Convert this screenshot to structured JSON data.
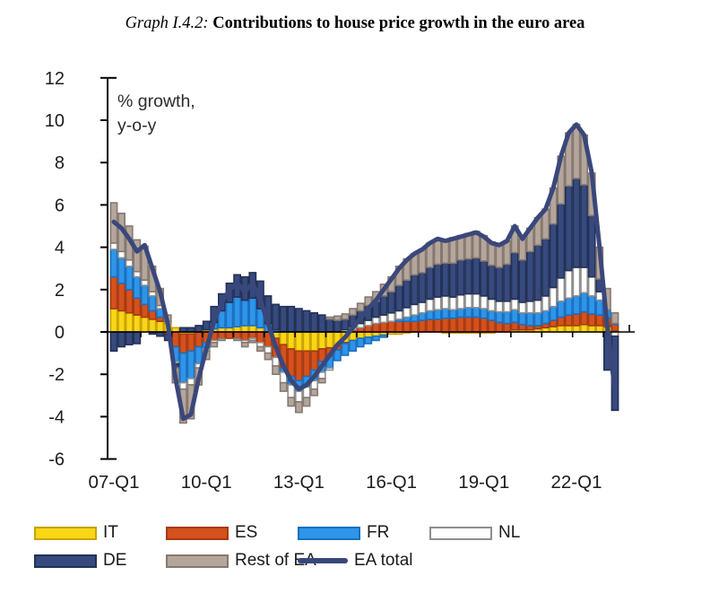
{
  "title": {
    "prefix": "Graph I.4.2:",
    "main": "Contributions to house price growth in the euro area"
  },
  "legend": {
    "items": [
      {
        "id": "IT",
        "label": "IT",
        "color": "#F9D616",
        "border": "#C9A300",
        "type": "box"
      },
      {
        "id": "ES",
        "label": "ES",
        "color": "#D5511D",
        "border": "#A63A11",
        "type": "box"
      },
      {
        "id": "FR",
        "label": "FR",
        "color": "#2E95E8",
        "border": "#1A6FC0",
        "type": "box"
      },
      {
        "id": "NL",
        "label": "NL",
        "color": "#FFFFFF",
        "border": "#8E8E8E",
        "type": "box"
      },
      {
        "id": "DE",
        "label": "DE",
        "color": "#364A7E",
        "border": "#243156",
        "type": "box"
      },
      {
        "id": "RestEA",
        "label": "Rest of EA",
        "color": "#B5A69B",
        "border": "#857870",
        "type": "box"
      },
      {
        "id": "EAtotal",
        "label": "EA total",
        "color": "#3A477B",
        "border": "#3A477B",
        "type": "line"
      }
    ]
  },
  "chart_data": {
    "type": "bar",
    "stacked": true,
    "title": "Contributions to house price growth in the euro area",
    "ylabel_annotation": [
      "% growth,",
      "y-o-y"
    ],
    "ylim": [
      -6,
      12
    ],
    "yticks": [
      12,
      10,
      8,
      6,
      4,
      2,
      0,
      -2,
      -4,
      -6
    ],
    "xtick_labels": [
      "07-Q1",
      "10-Q1",
      "13-Q1",
      "16-Q1",
      "19-Q1",
      "22-Q1"
    ],
    "grid": false,
    "legend_position": "bottom",
    "x": [
      "07-Q1",
      "07-Q2",
      "07-Q3",
      "07-Q4",
      "08-Q1",
      "08-Q2",
      "08-Q3",
      "08-Q4",
      "09-Q1",
      "09-Q2",
      "09-Q3",
      "09-Q4",
      "10-Q1",
      "10-Q2",
      "10-Q3",
      "10-Q4",
      "11-Q1",
      "11-Q2",
      "11-Q3",
      "11-Q4",
      "12-Q1",
      "12-Q2",
      "12-Q3",
      "12-Q4",
      "13-Q1",
      "13-Q2",
      "13-Q3",
      "13-Q4",
      "14-Q1",
      "14-Q2",
      "14-Q3",
      "14-Q4",
      "15-Q1",
      "15-Q2",
      "15-Q3",
      "15-Q4",
      "16-Q1",
      "16-Q2",
      "16-Q3",
      "16-Q4",
      "17-Q1",
      "17-Q2",
      "17-Q3",
      "17-Q4",
      "18-Q1",
      "18-Q2",
      "18-Q3",
      "18-Q4",
      "19-Q1",
      "19-Q2",
      "19-Q3",
      "19-Q4",
      "20-Q1",
      "20-Q2",
      "20-Q3",
      "20-Q4",
      "21-Q1",
      "21-Q2",
      "21-Q3",
      "21-Q4",
      "22-Q1",
      "22-Q2",
      "22-Q3",
      "22-Q4",
      "23-Q1",
      "23-Q2"
    ],
    "series": [
      {
        "name": "IT",
        "color": "#F9D616",
        "border": "#C9A300",
        "values": [
          1.1,
          1.0,
          0.9,
          0.8,
          0.7,
          0.6,
          0.5,
          0.4,
          0.2,
          -0.1,
          -0.1,
          0.0,
          0.1,
          0.15,
          0.2,
          0.2,
          0.25,
          0.3,
          0.3,
          0.2,
          0.0,
          -0.3,
          -0.6,
          -0.8,
          -0.9,
          -0.9,
          -0.9,
          -0.8,
          -0.75,
          -0.65,
          -0.5,
          -0.4,
          -0.3,
          -0.25,
          -0.2,
          -0.15,
          -0.1,
          -0.1,
          -0.05,
          0.0,
          0.0,
          0.0,
          0.0,
          -0.05,
          -0.05,
          -0.05,
          -0.05,
          -0.05,
          -0.05,
          -0.05,
          0.0,
          0.0,
          0.1,
          0.1,
          0.1,
          0.15,
          0.2,
          0.25,
          0.3,
          0.3,
          0.3,
          0.35,
          0.3,
          0.3,
          0.25,
          0.05
        ]
      },
      {
        "name": "ES",
        "color": "#D5511D",
        "border": "#A63A11",
        "values": [
          1.5,
          1.3,
          1.1,
          0.8,
          0.6,
          0.4,
          0.2,
          -0.1,
          -0.7,
          -0.9,
          -0.8,
          -0.7,
          -0.5,
          -0.4,
          -0.3,
          -0.3,
          -0.3,
          -0.4,
          -0.3,
          -0.5,
          -0.7,
          -0.9,
          -1.1,
          -1.3,
          -1.4,
          -1.2,
          -0.9,
          -0.6,
          -0.4,
          -0.2,
          -0.05,
          0.1,
          0.2,
          0.3,
          0.4,
          0.45,
          0.5,
          0.5,
          0.5,
          0.5,
          0.55,
          0.6,
          0.6,
          0.65,
          0.65,
          0.7,
          0.7,
          0.7,
          0.65,
          0.55,
          0.45,
          0.4,
          0.35,
          0.25,
          0.2,
          0.15,
          0.2,
          0.3,
          0.4,
          0.5,
          0.55,
          0.6,
          0.55,
          0.5,
          0.4,
          0.3
        ]
      },
      {
        "name": "FR",
        "color": "#2E95E8",
        "border": "#1A6FC0",
        "values": [
          1.3,
          1.2,
          1.1,
          1.0,
          0.9,
          0.7,
          0.4,
          0.0,
          -0.7,
          -1.4,
          -1.3,
          -0.8,
          -0.3,
          0.3,
          0.8,
          1.2,
          1.4,
          1.2,
          1.3,
          0.9,
          0.4,
          0.1,
          -0.2,
          -0.4,
          -0.5,
          -0.5,
          -0.5,
          -0.5,
          -0.55,
          -0.5,
          -0.55,
          -0.5,
          -0.4,
          -0.3,
          -0.2,
          -0.1,
          0.0,
          0.1,
          0.2,
          0.3,
          0.35,
          0.4,
          0.45,
          0.45,
          0.4,
          0.4,
          0.45,
          0.45,
          0.45,
          0.45,
          0.5,
          0.55,
          0.6,
          0.55,
          0.6,
          0.6,
          0.6,
          0.65,
          0.75,
          0.8,
          0.85,
          0.9,
          0.85,
          0.7,
          0.4,
          0.05
        ]
      },
      {
        "name": "NL",
        "color": "#FFFFFF",
        "border": "#8E8E8E",
        "values": [
          0.3,
          0.3,
          0.3,
          0.25,
          0.25,
          0.2,
          0.15,
          0.1,
          -0.1,
          -0.3,
          -0.3,
          -0.2,
          -0.1,
          -0.1,
          0.0,
          0.0,
          0.0,
          -0.1,
          -0.1,
          -0.2,
          -0.3,
          -0.4,
          -0.5,
          -0.6,
          -0.5,
          -0.5,
          -0.4,
          -0.3,
          -0.1,
          0.0,
          0.1,
          0.15,
          0.2,
          0.25,
          0.3,
          0.35,
          0.4,
          0.4,
          0.45,
          0.5,
          0.5,
          0.55,
          0.6,
          0.6,
          0.6,
          0.65,
          0.65,
          0.65,
          0.6,
          0.55,
          0.5,
          0.5,
          0.5,
          0.5,
          0.55,
          0.6,
          0.7,
          0.9,
          1.1,
          1.3,
          1.35,
          1.2,
          0.9,
          0.4,
          0.0,
          -0.2
        ]
      },
      {
        "name": "DE",
        "color": "#364A7E",
        "border": "#243156",
        "values": [
          -0.9,
          -0.7,
          -0.6,
          -0.55,
          0.0,
          -0.1,
          -0.2,
          -0.3,
          -0.2,
          0.2,
          0.2,
          0.3,
          0.4,
          0.75,
          0.8,
          0.9,
          1.05,
          1.1,
          1.2,
          1.3,
          1.3,
          1.2,
          1.2,
          1.2,
          1.1,
          1.0,
          0.9,
          0.8,
          0.6,
          0.55,
          0.5,
          0.55,
          0.6,
          0.7,
          0.75,
          0.9,
          1.0,
          1.2,
          1.3,
          1.4,
          1.4,
          1.5,
          1.55,
          1.55,
          1.6,
          1.65,
          1.65,
          1.7,
          1.65,
          1.6,
          1.6,
          1.75,
          2.2,
          2.0,
          2.35,
          2.6,
          2.7,
          3.0,
          3.5,
          4.0,
          4.2,
          3.9,
          2.9,
          0.6,
          -1.8,
          -3.5
        ]
      },
      {
        "name": "Rest of EA",
        "color": "#B5A69B",
        "border": "#857870",
        "values": [
          1.9,
          1.8,
          1.6,
          1.5,
          1.6,
          1.2,
          0.8,
          0.3,
          -0.7,
          -1.6,
          -1.6,
          -0.8,
          -0.4,
          -0.2,
          -0.1,
          0.0,
          -0.1,
          -0.2,
          -0.1,
          -0.2,
          -0.3,
          -0.4,
          -0.4,
          -0.4,
          -0.5,
          -0.4,
          -0.3,
          -0.2,
          0.1,
          0.2,
          0.25,
          0.3,
          0.35,
          0.4,
          0.45,
          0.55,
          0.7,
          0.9,
          1.0,
          1.0,
          1.1,
          1.15,
          1.2,
          1.1,
          1.2,
          1.15,
          1.2,
          1.25,
          1.2,
          1.1,
          1.05,
          1.1,
          1.25,
          1.0,
          1.1,
          1.3,
          1.4,
          1.7,
          2.25,
          2.5,
          2.55,
          2.35,
          2.0,
          1.5,
          1.0,
          0.5
        ]
      }
    ],
    "line": {
      "name": "EA total",
      "color": "#3A477B",
      "values": [
        5.2,
        4.9,
        4.4,
        3.8,
        4.1,
        3.0,
        1.9,
        0.4,
        -2.2,
        -4.1,
        -3.9,
        -2.2,
        -0.8,
        0.5,
        1.4,
        2.0,
        2.3,
        1.9,
        2.3,
        1.5,
        0.4,
        -0.7,
        -1.6,
        -2.3,
        -2.7,
        -2.5,
        -2.1,
        -1.6,
        -1.1,
        -0.6,
        -0.25,
        0.2,
        0.65,
        1.1,
        1.5,
        2.0,
        2.5,
        3.0,
        3.4,
        3.7,
        3.9,
        4.2,
        4.4,
        4.3,
        4.4,
        4.5,
        4.6,
        4.7,
        4.5,
        4.2,
        4.1,
        4.3,
        5.0,
        4.4,
        4.9,
        5.4,
        5.8,
        6.8,
        8.3,
        9.4,
        9.8,
        9.3,
        7.5,
        4.0,
        0.25,
        -2.8
      ]
    },
    "colors": {
      "axis": "#000000",
      "tick_text": "#1c1c1c",
      "annotation_text": "#2b2b2b"
    }
  }
}
